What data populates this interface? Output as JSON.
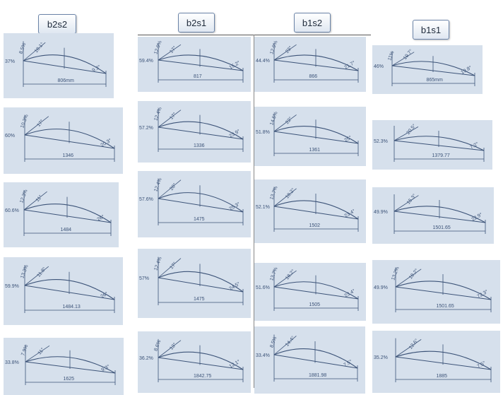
{
  "headers": [
    "b2s2",
    "b2s1",
    "b1s2",
    "b1s1"
  ],
  "colors": {
    "sheet": "#d6e0ec",
    "ink": "#3c5378",
    "header_border": "#6b84a8"
  },
  "columns": [
    {
      "name": "b2s2",
      "sketches": [
        {
          "left_pct": "37%",
          "angle1": "8.5%",
          "angle2": "18.1°",
          "right_angle": "9.3°",
          "span": "806mm"
        },
        {
          "left_pct": "60%",
          "angle1": "10.3%",
          "angle2": "17°",
          "right_angle": "20.3°",
          "span": "1346"
        },
        {
          "left_pct": "60.6%",
          "angle1": "12.3%",
          "angle2": "11°",
          "right_angle": "26°",
          "span": "1484"
        },
        {
          "left_pct": "59.9%",
          "angle1": "13.3%",
          "angle2": "11.8°",
          "right_angle": "26°",
          "span": "1484.13"
        },
        {
          "left_pct": "33.8%",
          "angle1": "7.9%",
          "angle2": "11°",
          "right_angle": "9.3°",
          "span": "1625"
        }
      ]
    },
    {
      "name": "b2s1",
      "sketches": [
        {
          "left_pct": "59.4%",
          "angle1": "12.9%",
          "angle2": "17°",
          "right_angle": "15.2°",
          "span": "817"
        },
        {
          "left_pct": "57.2%",
          "angle1": "12.4%",
          "angle2": "17°",
          "right_angle": "23.9°",
          "span": "1336"
        },
        {
          "left_pct": "57.6%",
          "angle1": "12.4%",
          "angle2": "20°",
          "right_angle": "25.3°",
          "span": "1475"
        },
        {
          "left_pct": "57%",
          "angle1": "12.4%",
          "angle2": "17°",
          "right_angle": "24.5°",
          "span": "1475"
        },
        {
          "left_pct": "36.2%",
          "angle1": "8.6%",
          "angle2": "13°",
          "right_angle": "12.1°",
          "span": "1842.75"
        }
      ]
    },
    {
      "name": "b1s2",
      "sketches": [
        {
          "left_pct": "44.4%",
          "angle1": "12.9%",
          "angle2": "23°",
          "right_angle": "21.7°",
          "span": "866"
        },
        {
          "left_pct": "51.8%",
          "angle1": "14.5%",
          "angle2": "22°",
          "right_angle": "25°",
          "span": "1361"
        },
        {
          "left_pct": "52.1%",
          "angle1": "13.7%",
          "angle2": "18.2°",
          "right_angle": "23.4°",
          "span": "1502"
        },
        {
          "left_pct": "51.6%",
          "angle1": "13.7%",
          "angle2": "18.2°",
          "right_angle": "23.4°",
          "span": "1505"
        },
        {
          "left_pct": "33.4%",
          "angle1": "8.5%",
          "angle2": "14.4°",
          "right_angle": "7.5°",
          "span": "1881.98"
        }
      ]
    },
    {
      "name": "b1s1",
      "sketches": [
        {
          "left_pct": "46%",
          "angle1": "11%",
          "angle2": "19.7°",
          "right_angle": "19.8°",
          "span": "865mm"
        },
        {
          "left_pct": "52.3%",
          "angle1": "",
          "angle2": "20.5°",
          "right_angle": "7.2°",
          "span": "1379.77"
        },
        {
          "left_pct": "49.9%",
          "angle1": "",
          "angle2": "15.3°",
          "right_angle": "22.9°",
          "span": "1501.65"
        },
        {
          "left_pct": "49.9%",
          "angle1": "13.2%",
          "angle2": "18.2°",
          "right_angle": "72.3°",
          "span": "1501.65"
        },
        {
          "left_pct": "35.2%",
          "angle1": "",
          "angle2": "12.6°",
          "right_angle": "7.5°",
          "span": "1885"
        }
      ]
    }
  ]
}
